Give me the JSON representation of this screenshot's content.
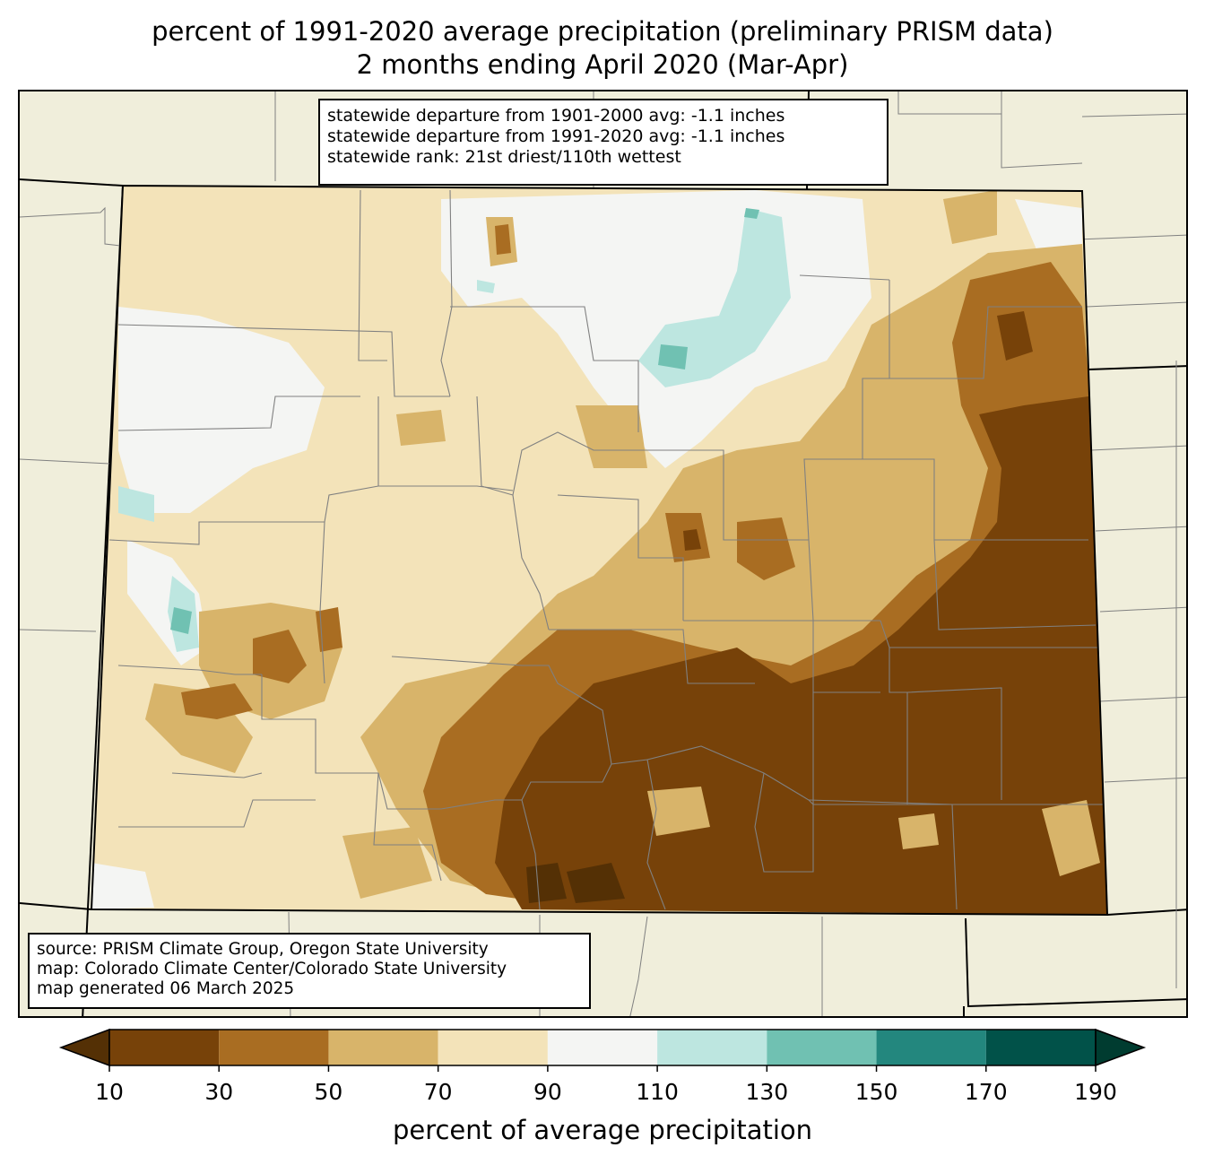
{
  "title": {
    "line1": "percent of 1991-2020 average precipitation (preliminary PRISM data)",
    "line2": "2 months ending April 2020 (Mar-Apr)"
  },
  "stats": {
    "line1": "statewide departure from 1901-2000 avg: -1.1 inches",
    "line2": "statewide departure from 1991-2020 avg: -1.1 inches",
    "line3": "statewide rank: 21st driest/110th wettest"
  },
  "source": {
    "line1": "source: PRISM Climate Group, Oregon State University",
    "line2": "map: Colorado Climate Center/Colorado State University",
    "line3": "map generated 06 March 2025"
  },
  "colorbar": {
    "label": "percent of average precipitation",
    "ticks": [
      "10",
      "30",
      "50",
      "70",
      "90",
      "110",
      "130",
      "150",
      "170",
      "190"
    ],
    "under_color": "#543005",
    "over_color": "#003c30",
    "bins": [
      {
        "min": 10,
        "max": 30,
        "color": "#774209"
      },
      {
        "min": 30,
        "max": 50,
        "color": "#a96d22"
      },
      {
        "min": 50,
        "max": 70,
        "color": "#d8b46a"
      },
      {
        "min": 70,
        "max": 90,
        "color": "#f3e3b9"
      },
      {
        "min": 90,
        "max": 110,
        "color": "#f4f5f3"
      },
      {
        "min": 110,
        "max": 130,
        "color": "#bde6e0"
      },
      {
        "min": 130,
        "max": 150,
        "color": "#70c1b2"
      },
      {
        "min": 150,
        "max": 170,
        "color": "#23877e"
      },
      {
        "min": 170,
        "max": 190,
        "color": "#015249"
      }
    ]
  },
  "map": {
    "background_color": "#f0eedb",
    "state_border_color": "#000000",
    "county_border_color": "#808080"
  }
}
